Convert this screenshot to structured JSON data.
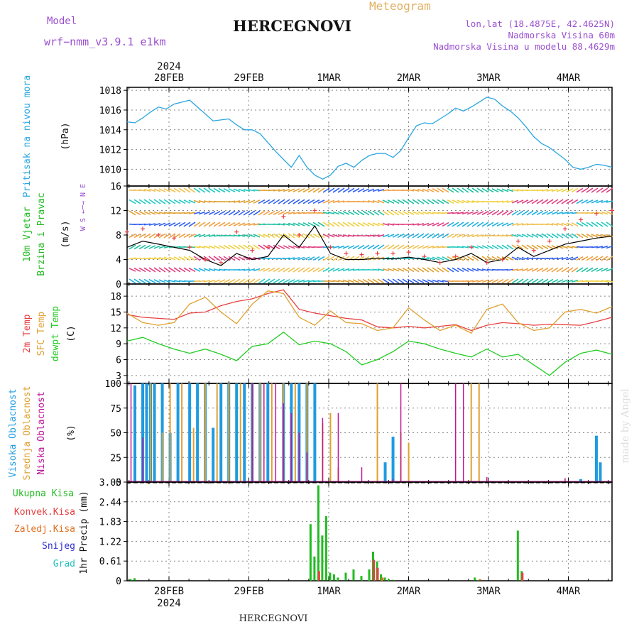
{
  "header": {
    "model_label": "Model",
    "model_name": "wrf−nmm_v3.9.1  e1km",
    "station": "HERCEGNOVI",
    "meteogram": "Meteogram",
    "lonlat": "lon,lat (18.4875E, 42.4625N)",
    "elev": "Nadmorska Visina 60m",
    "elev_model": "Nadmorska Visina u modelu 88.4629m",
    "footer_station": "HERCEGNOVI",
    "watermark": "made by Angel"
  },
  "colors": {
    "pressure": "#2aa6e0",
    "wind_speed_label": "#22bb22",
    "temp_2m": "#e84040",
    "temp_sfc": "#e0a030",
    "dewpoint": "#22cc22",
    "cloud_high": "#1e9be0",
    "cloud_mid": "#e0a030",
    "cloud_low": "#c0169a",
    "precip_total": "#22bb22",
    "precip_conv": "#e84040",
    "precip_frz": "#e07020",
    "snow": "#3030d0",
    "grad": "#20c0c0",
    "grid": "#888888"
  },
  "chart_data": [
    {
      "type": "line",
      "panel": "pressure",
      "ylabel_1": "Pritisak na nivou mora",
      "ylabel_2": "(hPa)",
      "yticks": [
        "1010",
        "1012",
        "1014",
        "1016",
        "1018"
      ],
      "ylim": [
        1008.3,
        1018.3
      ],
      "x_day_ticks_top": [
        "28FEB",
        "29FEB",
        "1MAR",
        "2MAR",
        "3MAR",
        "4MAR"
      ],
      "x_year_top": "2024",
      "x_unit": "day offset from start",
      "x_range": [
        0,
        6.2
      ],
      "series": [
        {
          "color_key": "pressure",
          "x": [
            0,
            0.1,
            0.2,
            0.3,
            0.4,
            0.5,
            0.6,
            0.7,
            0.8,
            0.9,
            1.0,
            1.1,
            1.2,
            1.3,
            1.4,
            1.5,
            1.6,
            1.7,
            1.8,
            1.9,
            2.0,
            2.1,
            2.2,
            2.3,
            2.4,
            2.5,
            2.6,
            2.7,
            2.8,
            2.9,
            3.0,
            3.1,
            3.2,
            3.3,
            3.4,
            3.5,
            3.6,
            3.7,
            3.8,
            3.9,
            4.0,
            4.1,
            4.2,
            4.3,
            4.4,
            4.5,
            4.6,
            4.7,
            4.8,
            4.9,
            5.0,
            5.1,
            5.2,
            5.3,
            5.4,
            5.5,
            5.6,
            5.7,
            5.8,
            5.9,
            6.0,
            6.1,
            6.2
          ],
          "values": [
            1014.8,
            1014.7,
            1015.2,
            1015.8,
            1016.3,
            1016.1,
            1016.6,
            1016.8,
            1017.0,
            1016.3,
            1015.6,
            1014.9,
            1015.0,
            1015.1,
            1014.5,
            1014.0,
            1014.0,
            1013.6,
            1012.7,
            1011.8,
            1011.0,
            1010.2,
            1011.4,
            1010.2,
            1009.4,
            1009.0,
            1009.4,
            1010.3,
            1010.6,
            1010.2,
            1010.9,
            1011.4,
            1011.6,
            1011.6,
            1011.2,
            1011.9,
            1013.2,
            1014.4,
            1014.7,
            1014.6,
            1015.1,
            1015.6,
            1016.2,
            1015.9,
            1016.3,
            1016.8,
            1017.3,
            1017.1,
            1016.4,
            1015.9,
            1015.2,
            1014.3,
            1013.3,
            1012.6,
            1012.2,
            1011.6,
            1011.0,
            1010.2,
            1010.0,
            1010.2,
            1010.5,
            1010.4,
            1010.2
          ]
        }
      ]
    },
    {
      "type": "line",
      "panel": "wind",
      "ylabel_1": "10m Vjetar",
      "ylabel_2": "Brzina i Pravac",
      "ylabel_3": "(m/s)",
      "compass": "W  S ←─→ N  E",
      "yticks": [
        "0",
        "4",
        "8",
        "12",
        "16"
      ],
      "ylim": [
        0,
        16
      ],
      "series": [
        {
          "name": "speed",
          "color_key": "wind_line",
          "x": [
            0,
            0.2,
            0.4,
            0.6,
            0.8,
            1.0,
            1.2,
            1.4,
            1.6,
            1.8,
            2.0,
            2.2,
            2.4,
            2.6,
            2.8,
            3.0,
            3.2,
            3.4,
            3.6,
            3.8,
            4.0,
            4.2,
            4.4,
            4.6,
            4.8,
            5.0,
            5.2,
            5.4,
            5.6,
            5.8,
            6.0,
            6.2
          ],
          "values": [
            6.0,
            7.0,
            6.5,
            6.0,
            5.5,
            4.0,
            3.0,
            5.0,
            4.0,
            4.5,
            8.0,
            6.0,
            9.5,
            5.0,
            4.0,
            4.0,
            4.2,
            4.1,
            4.4,
            4.0,
            3.5,
            4.0,
            5.0,
            3.5,
            4.0,
            6.0,
            4.5,
            5.5,
            6.5,
            7.0,
            7.5,
            7.8
          ]
        },
        {
          "name": "gust",
          "color_key": "gust",
          "x": [
            0,
            0.2,
            0.4,
            0.6,
            0.8,
            1.0,
            1.2,
            1.4,
            1.6,
            1.8,
            2.0,
            2.2,
            2.4,
            2.6,
            2.8,
            3.0,
            3.2,
            3.4,
            3.6,
            3.8,
            4.0,
            4.2,
            4.4,
            4.6,
            4.8,
            5.0,
            5.2,
            5.4,
            5.6,
            5.8,
            6.0,
            6.2
          ],
          "values": [
            8.5,
            9.0,
            8.0,
            7.5,
            6.0,
            4.0,
            3.5,
            8.5,
            5.5,
            6.0,
            11.0,
            8.0,
            12.0,
            6.0,
            5.0,
            4.8,
            5.0,
            5.0,
            5.2,
            4.5,
            3.5,
            4.5,
            6.0,
            3.5,
            4.0,
            7.0,
            5.5,
            7.0,
            9.0,
            10.5,
            11.5,
            12.0
          ]
        }
      ]
    },
    {
      "type": "line",
      "panel": "temperature",
      "ylabel_1": "2m Temp",
      "ylabel_2": "SFC Temp",
      "ylabel_3": "dewpt Temp",
      "ylabel_4": "(C)",
      "yticks": [
        "3",
        "6",
        "9",
        "12",
        "15",
        "18"
      ],
      "ylim": [
        1.5,
        20.3
      ],
      "series": [
        {
          "name": "2m Temp",
          "color_key": "temp_2m",
          "x": [
            0,
            0.2,
            0.4,
            0.6,
            0.8,
            1.0,
            1.2,
            1.4,
            1.6,
            1.8,
            2.0,
            2.2,
            2.4,
            2.6,
            2.8,
            3.0,
            3.2,
            3.4,
            3.6,
            3.8,
            4.0,
            4.2,
            4.4,
            4.6,
            4.8,
            5.0,
            5.2,
            5.4,
            5.6,
            5.8,
            6.0,
            6.2
          ],
          "values": [
            14.5,
            14.0,
            13.8,
            13.6,
            14.8,
            15.0,
            16.2,
            17.0,
            17.5,
            18.5,
            19.2,
            15.5,
            14.8,
            14.3,
            13.8,
            13.5,
            12.2,
            12.0,
            12.3,
            12.0,
            12.3,
            12.6,
            11.5,
            12.5,
            13.0,
            12.8,
            12.5,
            12.7,
            12.6,
            12.5,
            13.2,
            14.0
          ]
        },
        {
          "name": "SFC Temp",
          "color_key": "temp_sfc",
          "x": [
            0,
            0.2,
            0.4,
            0.6,
            0.8,
            1.0,
            1.2,
            1.4,
            1.6,
            1.8,
            2.0,
            2.2,
            2.4,
            2.6,
            2.8,
            3.0,
            3.2,
            3.4,
            3.6,
            3.8,
            4.0,
            4.2,
            4.4,
            4.6,
            4.8,
            5.0,
            5.2,
            5.4,
            5.6,
            5.8,
            6.0,
            6.2
          ],
          "values": [
            14.8,
            13.0,
            12.5,
            13.0,
            16.5,
            17.8,
            15.0,
            12.8,
            16.5,
            19.0,
            18.5,
            14.0,
            12.5,
            15.2,
            13.0,
            12.8,
            11.5,
            12.0,
            15.8,
            13.5,
            11.5,
            12.5,
            11.0,
            15.5,
            16.5,
            13.0,
            11.5,
            12.0,
            15.0,
            15.5,
            14.8,
            16.0
          ]
        },
        {
          "name": "dewpt Temp",
          "color_key": "dewpoint",
          "x": [
            0,
            0.2,
            0.4,
            0.6,
            0.8,
            1.0,
            1.2,
            1.4,
            1.6,
            1.8,
            2.0,
            2.2,
            2.4,
            2.6,
            2.8,
            3.0,
            3.2,
            3.4,
            3.6,
            3.8,
            4.0,
            4.2,
            4.4,
            4.6,
            4.8,
            5.0,
            5.2,
            5.4,
            5.6,
            5.8,
            6.0,
            6.2
          ],
          "values": [
            9.5,
            10.2,
            9.0,
            8.0,
            7.2,
            8.0,
            7.0,
            5.8,
            8.5,
            9.0,
            11.2,
            8.8,
            9.5,
            9.0,
            7.5,
            5.0,
            6.0,
            7.5,
            9.5,
            9.0,
            8.0,
            7.2,
            6.5,
            8.0,
            6.5,
            7.0,
            5.0,
            3.0,
            5.5,
            7.2,
            7.8,
            7.0
          ]
        }
      ]
    },
    {
      "type": "bar",
      "panel": "clouds",
      "ylabel_1": "Visoka Oblacnost",
      "ylabel_2": "Srednja Oblacnost",
      "ylabel_3": "Niska Oblacnost",
      "ylabel_4": "(%)",
      "yticks": [
        "0",
        "25",
        "50",
        "75",
        "100"
      ],
      "ylim": [
        0,
        100
      ],
      "series": [
        {
          "name": "Visoka Oblacnost",
          "color_key": "cloud_high",
          "x": [
            0.1,
            0.2,
            0.25,
            0.3,
            0.35,
            0.45,
            0.55,
            0.65,
            0.8,
            0.9,
            1.0,
            1.1,
            1.2,
            1.3,
            1.4,
            1.5,
            1.6,
            1.7,
            1.8,
            2.0,
            2.1,
            2.2,
            2.3,
            2.4,
            3.3,
            3.4,
            5.8,
            6.0,
            6.05
          ],
          "values": [
            98,
            100,
            100,
            100,
            100,
            100,
            50,
            100,
            100,
            100,
            100,
            55,
            100,
            100,
            100,
            100,
            100,
            100,
            100,
            100,
            100,
            100,
            100,
            100,
            20,
            46,
            3,
            47,
            20
          ]
        },
        {
          "name": "Srednja Oblacnost",
          "color_key": "cloud_mid",
          "x": [
            0.3,
            0.45,
            0.55,
            0.7,
            0.85,
            1.0,
            1.15,
            1.3,
            1.45,
            1.6,
            1.7,
            1.85,
            2.0,
            2.15,
            2.3,
            2.5,
            2.6,
            2.7,
            3.2,
            3.5,
            3.6,
            4.4,
            4.5
          ],
          "values": [
            100,
            50,
            100,
            100,
            55,
            100,
            100,
            100,
            100,
            100,
            100,
            100,
            100,
            100,
            100,
            60,
            70,
            15,
            100,
            50,
            40,
            100,
            100
          ]
        },
        {
          "name": "Niska Oblacnost",
          "color_key": "cloud_low",
          "x": [
            0.05,
            0.2,
            1.6,
            1.75,
            1.9,
            2.0,
            2.1,
            2.2,
            2.3,
            2.5,
            2.7,
            3.0,
            3.4,
            3.5,
            4.2,
            4.3,
            4.6,
            5.6
          ],
          "values": [
            100,
            45,
            100,
            100,
            100,
            80,
            70,
            50,
            30,
            65,
            70,
            15,
            3,
            100,
            100,
            100,
            5,
            4
          ]
        }
      ]
    },
    {
      "type": "bar",
      "panel": "precip",
      "ylabel_1": "1hr Precip (mm)",
      "legend_1": "Ukupna Kisa",
      "legend_2": "Konvek.Kisa",
      "legend_3": "Zaledj.Kisa",
      "legend_4": "Snijeg",
      "legend_5": "Grad",
      "yticks": [
        "0",
        "0.61",
        "1.22",
        "1.83",
        "2.44",
        "3.05"
      ],
      "ylim": [
        0,
        3.05
      ],
      "x_day_ticks_bottom": [
        "28FEB",
        "29FEB",
        "1MAR",
        "2MAR",
        "3MAR",
        "4MAR"
      ],
      "x_year_bottom": "2024",
      "series": [
        {
          "name": "Ukupna Kisa",
          "color_key": "precip_total",
          "x": [
            0.05,
            0.1,
            2.35,
            2.4,
            2.45,
            2.5,
            2.55,
            2.6,
            2.65,
            2.7,
            2.8,
            2.9,
            3.0,
            3.1,
            3.15,
            3.2,
            3.25,
            3.3,
            3.35,
            3.4,
            4.45,
            4.5,
            5.0,
            5.05
          ],
          "values": [
            0.05,
            0.08,
            1.75,
            0.75,
            2.95,
            1.4,
            2.0,
            0.25,
            0.2,
            0.1,
            0.25,
            0.35,
            0.15,
            0.35,
            0.9,
            0.6,
            0.2,
            0.1,
            0.05,
            0.03,
            0.1,
            0.03,
            1.55,
            0.3
          ]
        },
        {
          "name": "Konvek.Kisa",
          "color_key": "precip_conv",
          "x": [
            2.45,
            3.15,
            3.2,
            5.05
          ],
          "values": [
            0.3,
            0.65,
            0.4,
            0.25
          ]
        },
        {
          "name": "Zaledj.Kisa",
          "color_key": "precip_frz",
          "x": [
            3.25,
            4.5
          ],
          "values": [
            0.1,
            0.05
          ]
        }
      ]
    }
  ]
}
